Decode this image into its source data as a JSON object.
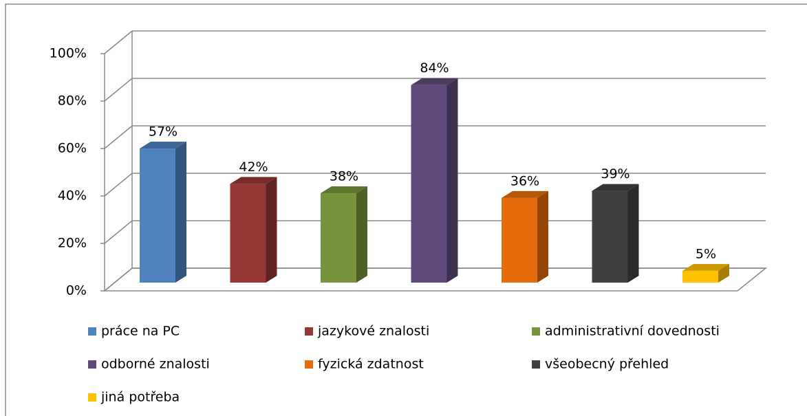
{
  "chart_data": {
    "type": "bar",
    "series": [
      {
        "name": "práce na PC",
        "color": "#4f81bd",
        "values": [
          57
        ],
        "value_labels": [
          "57%"
        ]
      },
      {
        "name": "jazykové znalosti",
        "color": "#953735",
        "values": [
          42
        ],
        "value_labels": [
          "42%"
        ]
      },
      {
        "name": "administrativní dovednosti",
        "color": "#77933c",
        "values": [
          38
        ],
        "value_labels": [
          "38%"
        ]
      },
      {
        "name": "odborné znalosti",
        "color": "#604a7b",
        "values": [
          84
        ],
        "value_labels": [
          "84%"
        ]
      },
      {
        "name": "fyzická zdatnost",
        "color": "#e46c0a",
        "values": [
          36
        ],
        "value_labels": [
          "36%"
        ]
      },
      {
        "name": "všeobecný přehled",
        "color": "#404040",
        "values": [
          39
        ],
        "value_labels": [
          "39%"
        ]
      },
      {
        "name": "jiná potřeba",
        "color": "#ffc000",
        "values": [
          5
        ],
        "value_labels": [
          "5%"
        ]
      }
    ],
    "ylim": [
      0,
      100
    ],
    "yticks": [
      {
        "value": 0,
        "label": "0%"
      },
      {
        "value": 20,
        "label": "20%"
      },
      {
        "value": 40,
        "label": "40%"
      },
      {
        "value": 60,
        "label": "60%"
      },
      {
        "value": 80,
        "label": "80%"
      },
      {
        "value": 100,
        "label": "100%"
      }
    ],
    "grid": true,
    "legend": "bottom"
  }
}
